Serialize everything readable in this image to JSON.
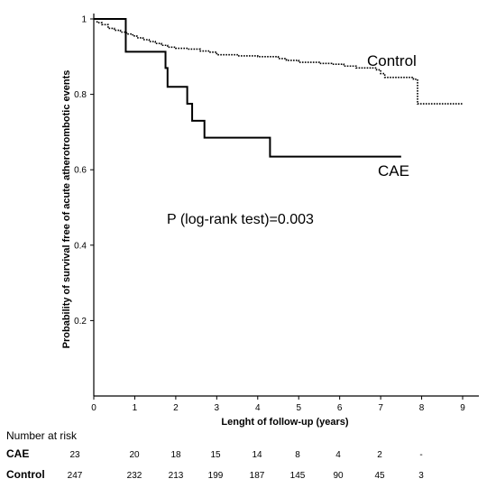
{
  "chart_data": {
    "type": "line",
    "title": "",
    "xlabel": "Lenght of follow-up (years)",
    "ylabel": "Probability of survival free of acute atherotrombotic events",
    "xlim": [
      0,
      9
    ],
    "ylim": [
      0,
      1
    ],
    "x_ticks": [
      "0",
      "1",
      "2",
      "3",
      "4",
      "5",
      "6",
      "7",
      "8",
      "9"
    ],
    "y_ticks": [
      "0.2",
      "0.4",
      "0.6",
      "0.8",
      "1"
    ],
    "grid": false,
    "series": [
      {
        "name": "Control",
        "style": "dotted-step",
        "color": "#000000",
        "points": [
          [
            0,
            1.0
          ],
          [
            0.08,
            0.99
          ],
          [
            0.2,
            0.985
          ],
          [
            0.35,
            0.975
          ],
          [
            0.5,
            0.97
          ],
          [
            0.65,
            0.965
          ],
          [
            0.8,
            0.96
          ],
          [
            0.95,
            0.955
          ],
          [
            1.05,
            0.95
          ],
          [
            1.2,
            0.945
          ],
          [
            1.35,
            0.94
          ],
          [
            1.5,
            0.935
          ],
          [
            1.65,
            0.93
          ],
          [
            1.8,
            0.925
          ],
          [
            2.0,
            0.922
          ],
          [
            2.3,
            0.92
          ],
          [
            2.6,
            0.915
          ],
          [
            2.8,
            0.912
          ],
          [
            3.0,
            0.905
          ],
          [
            3.5,
            0.902
          ],
          [
            4.0,
            0.9
          ],
          [
            4.5,
            0.895
          ],
          [
            4.7,
            0.89
          ],
          [
            5.0,
            0.885
          ],
          [
            5.5,
            0.882
          ],
          [
            5.8,
            0.88
          ],
          [
            6.1,
            0.875
          ],
          [
            6.4,
            0.87
          ],
          [
            6.9,
            0.865
          ],
          [
            7.0,
            0.855
          ],
          [
            7.1,
            0.845
          ],
          [
            7.5,
            0.845
          ],
          [
            7.8,
            0.84
          ],
          [
            7.9,
            0.775
          ],
          [
            8.2,
            0.775
          ],
          [
            8.3,
            0.775
          ],
          [
            9.0,
            0.775
          ]
        ],
        "end_x": 9.0
      },
      {
        "name": "CAE",
        "style": "solid-step",
        "color": "#000000",
        "points": [
          [
            0,
            1.0
          ],
          [
            0.78,
            0.913
          ],
          [
            1.75,
            0.87
          ],
          [
            1.8,
            0.82
          ],
          [
            2.28,
            0.775
          ],
          [
            2.4,
            0.73
          ],
          [
            2.7,
            0.685
          ],
          [
            4.3,
            0.635
          ]
        ],
        "end_x": 7.5
      }
    ],
    "annotations": {
      "control_label": "Control",
      "cae_label": "CAE",
      "pvalue": "P (log-rank test)=0.003"
    },
    "risk_table": {
      "header": "Number at risk",
      "rows": [
        {
          "label": "CAE",
          "values": [
            "23",
            "20",
            "18",
            "15",
            "14",
            "8",
            "4",
            "2",
            "-"
          ]
        },
        {
          "label": "Control",
          "values": [
            "247",
            "232",
            "213",
            "199",
            "187",
            "145",
            "90",
            "45",
            "3"
          ]
        }
      ]
    }
  }
}
